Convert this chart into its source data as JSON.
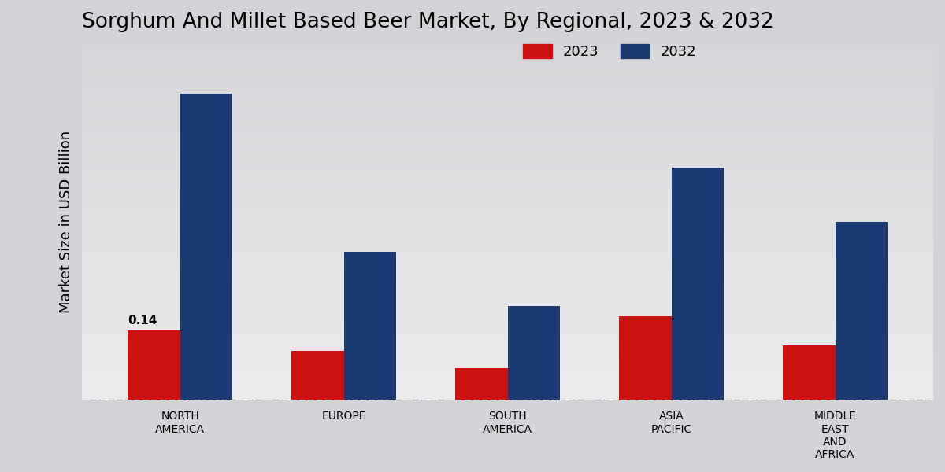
{
  "title": "Sorghum And Millet Based Beer Market, By Regional, 2023 & 2032",
  "ylabel": "Market Size in USD Billion",
  "categories": [
    "NORTH\nAMERICA",
    "EUROPE",
    "SOUTH\nAMERICA",
    "ASIA\nPACIFIC",
    "MIDDLE\nEAST\nAND\nAFRICA"
  ],
  "values_2023": [
    0.14,
    0.1,
    0.065,
    0.17,
    0.11
  ],
  "values_2032": [
    0.62,
    0.3,
    0.19,
    0.47,
    0.36
  ],
  "color_2023": "#cc1111",
  "color_2032": "#1a3a72",
  "annotation_value": "0.14",
  "annotation_region_idx": 0,
  "bar_width": 0.32,
  "ylim": [
    0,
    0.72
  ],
  "legend_labels": [
    "2023",
    "2032"
  ],
  "title_fontsize": 19,
  "axis_label_fontsize": 13,
  "tick_fontsize": 10,
  "legend_fontsize": 13,
  "bg_top": "#d4d4d8",
  "bg_bottom": "#f0f0f2",
  "dashed_color": "#aaaaaa"
}
